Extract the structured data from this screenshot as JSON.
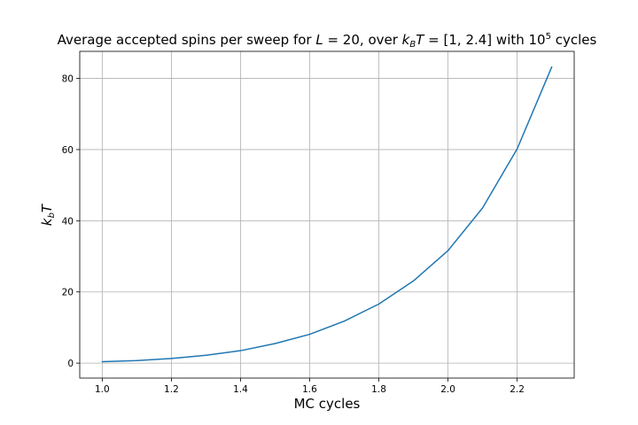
{
  "chart_data": {
    "type": "line",
    "title_parts": {
      "prefix": "Average accepted spins per sweep for ",
      "L": "L",
      "eq1": " = 20",
      "middle": ", over ",
      "k": "k",
      "k_sub": "B",
      "T": "T",
      "eq2": " = [1, 2.4]",
      "with": " with 10",
      "exp": "5",
      "suffix": " cycles"
    },
    "xlabel": "MC cycles",
    "ylabel_parts": {
      "k": "k",
      "sub": "b",
      "T": "T"
    },
    "xlim": [
      0.935,
      2.365
    ],
    "ylim": [
      -4.2,
      87.6
    ],
    "xticks": [
      1.0,
      1.2,
      1.4,
      1.6,
      1.8,
      2.0,
      2.2
    ],
    "xtick_labels": [
      "1.0",
      "1.2",
      "1.4",
      "1.6",
      "1.8",
      "2.0",
      "2.2"
    ],
    "yticks": [
      0,
      20,
      40,
      60,
      80
    ],
    "ytick_labels": [
      "0",
      "20",
      "40",
      "60",
      "80"
    ],
    "grid": true,
    "series": [
      {
        "color": "#1f77b4",
        "x": [
          1.0,
          1.1,
          1.2,
          1.3,
          1.4,
          1.5,
          1.6,
          1.7,
          1.8,
          1.9,
          2.0,
          2.1,
          2.2,
          2.3
        ],
        "y": [
          0.4,
          0.7,
          1.3,
          2.2,
          3.5,
          5.5,
          8.1,
          11.8,
          16.6,
          23.1,
          31.6,
          43.6,
          60.2,
          83.2
        ]
      }
    ]
  }
}
